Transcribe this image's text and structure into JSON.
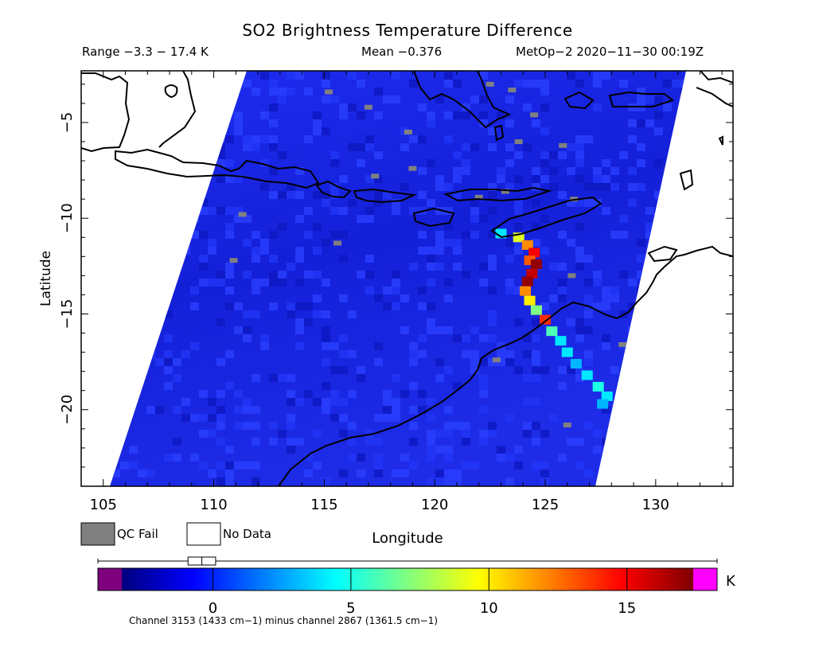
{
  "header": {
    "title": "SO2 Brightness Temperature Difference",
    "range": "Range −3.3 − 17.4 K",
    "mean": "Mean −0.376",
    "satellite": "MetOp−2 2020−11−30 00:19Z"
  },
  "legend": {
    "qc_fail": "QC Fail",
    "no_data": "No Data",
    "qc_color": "#808080"
  },
  "colorbar": {
    "unit": "K",
    "footnote": "Channel 3153 (1433 cm−1) minus channel 2867 (1361.5 cm−1)",
    "min": -3.3,
    "max": 17.4,
    "ticks": [
      "0",
      "5",
      "10",
      "15"
    ],
    "tick_values": [
      0,
      5,
      10,
      15
    ],
    "under_color": "#7f007f",
    "over_color": "#ff00ff",
    "gradient": [
      "#00007f",
      "#0000ff",
      "#0080ff",
      "#00ffff",
      "#80ff80",
      "#ffff00",
      "#ff8000",
      "#ff0000",
      "#7f0000"
    ],
    "box_plot": {
      "whisker_low": -3.3,
      "q1": -0.9,
      "median": -0.4,
      "q3": 0.1,
      "whisker_high": 17.4
    }
  },
  "chart_data": {
    "type": "heatmap",
    "title": "SO2 Brightness Temperature Difference",
    "xlabel": "Longitude",
    "ylabel": "Latitude",
    "xlim": [
      104,
      133.5
    ],
    "ylim": [
      -24,
      -2.3
    ],
    "xticks": [
      "105",
      "110",
      "115",
      "120",
      "125",
      "130"
    ],
    "xtick_values": [
      105,
      110,
      115,
      120,
      125,
      130
    ],
    "yticks": [
      "−5",
      "−10",
      "−15",
      "−20"
    ],
    "ytick_values": [
      -5,
      -10,
      -15,
      -20
    ],
    "background_value_K": -0.4,
    "plume": [
      {
        "lon": 123.0,
        "lat": -10.8,
        "value": 4
      },
      {
        "lon": 123.8,
        "lat": -11.0,
        "value": 9
      },
      {
        "lon": 124.2,
        "lat": -11.4,
        "value": 12
      },
      {
        "lon": 124.5,
        "lat": -11.8,
        "value": 15
      },
      {
        "lon": 124.3,
        "lat": -12.2,
        "value": 13
      },
      {
        "lon": 124.6,
        "lat": -12.4,
        "value": 17
      },
      {
        "lon": 124.4,
        "lat": -12.9,
        "value": 16
      },
      {
        "lon": 124.2,
        "lat": -13.3,
        "value": 17
      },
      {
        "lon": 124.1,
        "lat": -13.8,
        "value": 12
      },
      {
        "lon": 124.3,
        "lat": -14.3,
        "value": 10
      },
      {
        "lon": 124.6,
        "lat": -14.8,
        "value": 7
      },
      {
        "lon": 125.0,
        "lat": -15.3,
        "value": 14
      },
      {
        "lon": 125.3,
        "lat": -15.9,
        "value": 6
      },
      {
        "lon": 125.7,
        "lat": -16.4,
        "value": 4
      },
      {
        "lon": 126.0,
        "lat": -17.0,
        "value": 4
      },
      {
        "lon": 126.4,
        "lat": -17.6,
        "value": 3
      },
      {
        "lon": 126.9,
        "lat": -18.2,
        "value": 4
      },
      {
        "lon": 127.4,
        "lat": -18.8,
        "value": 5
      },
      {
        "lon": 127.8,
        "lat": -19.3,
        "value": 4
      },
      {
        "lon": 127.6,
        "lat": -19.7,
        "value": 3
      }
    ],
    "qc_fail_pixels": [
      {
        "lon": 115.2,
        "lat": -3.4
      },
      {
        "lon": 117.0,
        "lat": -4.2
      },
      {
        "lon": 122.5,
        "lat": -3.0
      },
      {
        "lon": 123.5,
        "lat": -3.3
      },
      {
        "lon": 124.5,
        "lat": -4.6
      },
      {
        "lon": 125.8,
        "lat": -6.2
      },
      {
        "lon": 119.0,
        "lat": -7.4
      },
      {
        "lon": 117.3,
        "lat": -7.8
      },
      {
        "lon": 118.8,
        "lat": -5.5
      },
      {
        "lon": 123.2,
        "lat": -8.6
      },
      {
        "lon": 122.0,
        "lat": -8.9
      },
      {
        "lon": 111.3,
        "lat": -9.8
      },
      {
        "lon": 115.6,
        "lat": -11.3
      },
      {
        "lon": 110.9,
        "lat": -12.2
      },
      {
        "lon": 126.2,
        "lat": -13.0
      },
      {
        "lon": 128.5,
        "lat": -16.6
      },
      {
        "lon": 122.8,
        "lat": -17.4
      },
      {
        "lon": 126.0,
        "lat": -20.8
      },
      {
        "lon": 126.3,
        "lat": -9.0
      },
      {
        "lon": 123.8,
        "lat": -6.0
      }
    ]
  }
}
